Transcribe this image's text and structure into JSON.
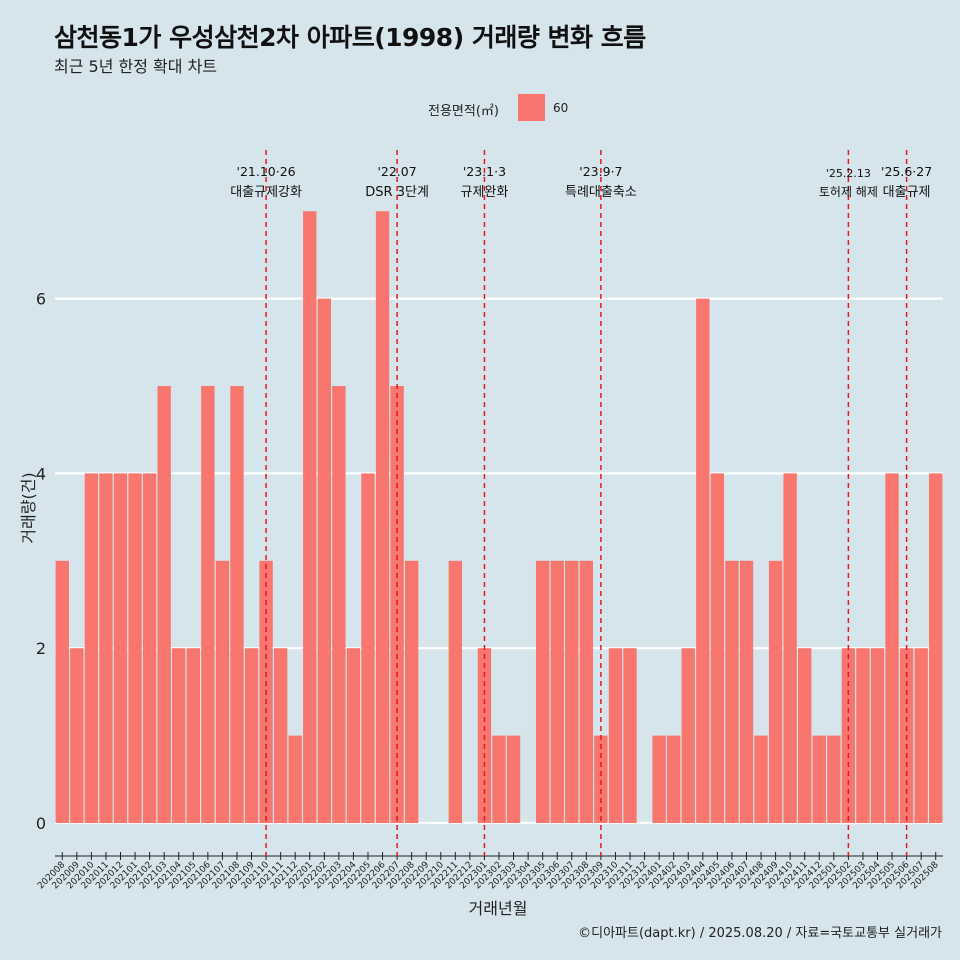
{
  "title": "삼천동1가 우성삼천2차 아파트(1998) 거래량 변화 흐름",
  "subtitle": "최근 5년 한정 확대 차트",
  "caption": "©디아파트(dapt.kr) / 2025.08.20 / 자료=국토교통부 실거래가",
  "chart_data": {
    "type": "bar",
    "xlabel": "거래년월",
    "ylabel": "거래량(건)",
    "ylim": [
      0,
      7.4
    ],
    "yticks": [
      0,
      2,
      4,
      6
    ],
    "grid": "horizontal",
    "legend": {
      "title": "전용면적(㎡)",
      "placement": "top",
      "entries": [
        "60"
      ]
    },
    "colors": {
      "bar": "#f8766d",
      "event_line": "#e41a1c",
      "background": "#d6e4ec",
      "grid": "#ffffff"
    },
    "categories": [
      "202008",
      "202009",
      "202010",
      "202011",
      "202012",
      "202101",
      "202102",
      "202103",
      "202104",
      "202105",
      "202106",
      "202107",
      "202108",
      "202109",
      "202110",
      "202111",
      "202112",
      "202201",
      "202202",
      "202203",
      "202204",
      "202205",
      "202206",
      "202207",
      "202208",
      "202209",
      "202210",
      "202211",
      "202212",
      "202301",
      "202302",
      "202303",
      "202304",
      "202305",
      "202306",
      "202307",
      "202308",
      "202309",
      "202310",
      "202311",
      "202312",
      "202401",
      "202402",
      "202403",
      "202404",
      "202405",
      "202406",
      "202407",
      "202408",
      "202409",
      "202410",
      "202411",
      "202412",
      "202501",
      "202502",
      "202503",
      "202504",
      "202505",
      "202506",
      "202507",
      "202508"
    ],
    "series": [
      {
        "name": "60",
        "values": [
          3,
          2,
          4,
          4,
          4,
          4,
          4,
          5,
          2,
          2,
          5,
          3,
          5,
          2,
          3,
          2,
          1,
          7,
          6,
          5,
          2,
          4,
          7,
          5,
          3,
          0,
          0,
          3,
          0,
          2,
          1,
          1,
          0,
          3,
          3,
          3,
          3,
          1,
          2,
          2,
          0,
          1,
          1,
          2,
          6,
          4,
          3,
          3,
          1,
          3,
          4,
          2,
          1,
          1,
          2,
          2,
          2,
          4,
          2,
          2,
          4
        ]
      }
    ],
    "events": [
      {
        "category": "202110",
        "date": "'21.10·26",
        "label": "대출규제강화"
      },
      {
        "category": "202207",
        "date": "'22.07",
        "label": "DSR 3단계"
      },
      {
        "category": "202301",
        "date": "'23.1·3",
        "label": "규제완화"
      },
      {
        "category": "202309",
        "date": "'23.9·7",
        "label": "특례대출축소"
      },
      {
        "category": "202502",
        "date": "'25.2.13",
        "label": "토허제 해제"
      },
      {
        "category": "202506",
        "date": "'25.6·27",
        "label": "대출규제"
      }
    ]
  }
}
